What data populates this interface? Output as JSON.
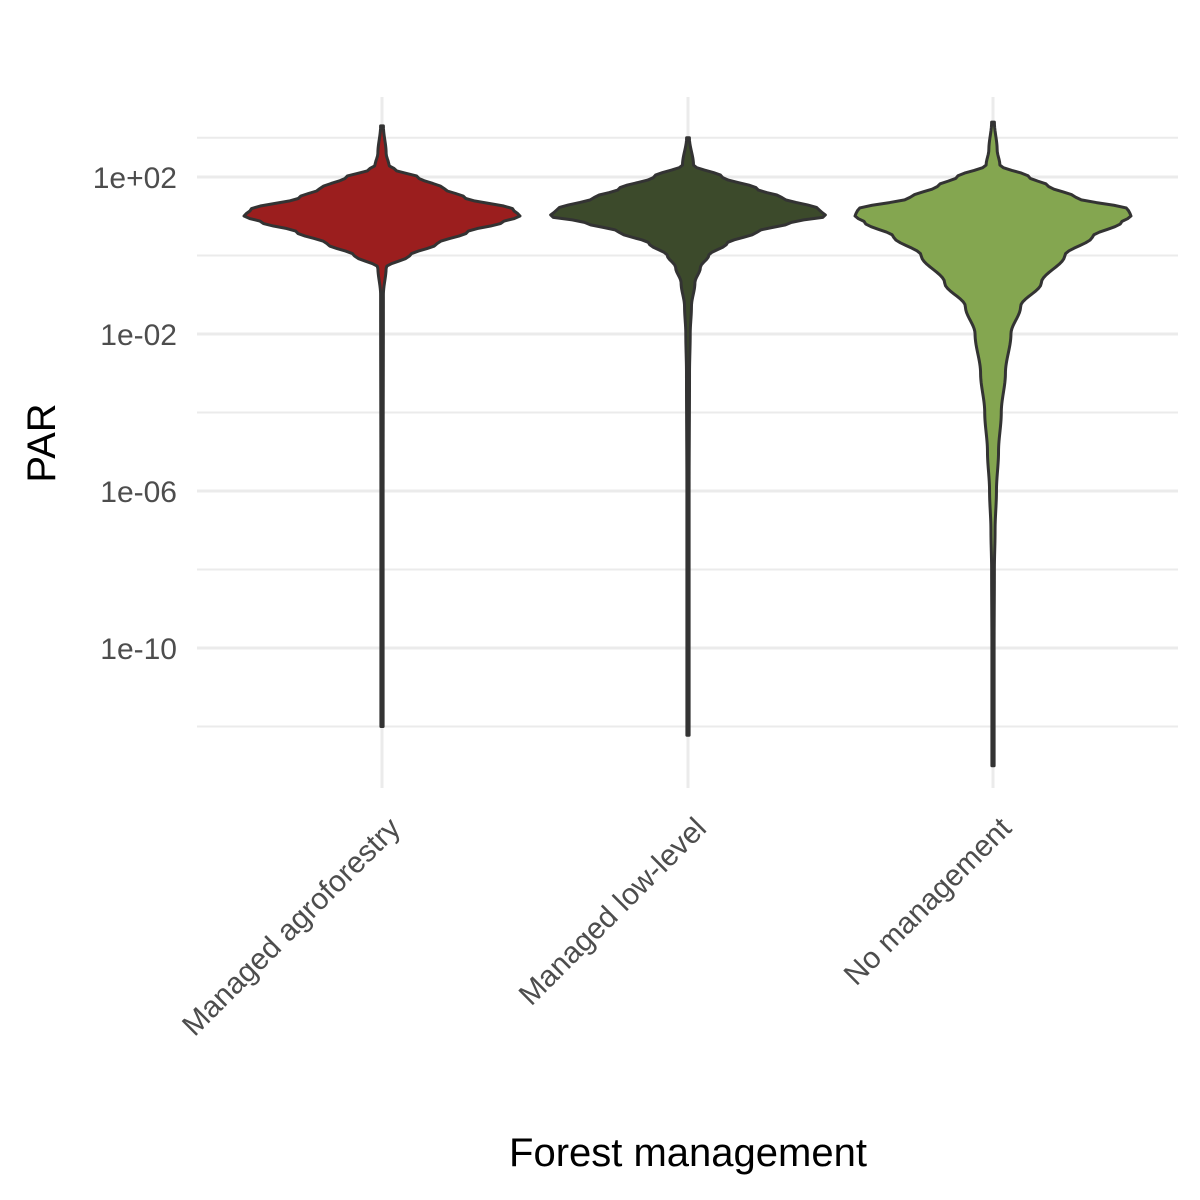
{
  "chart_data": {
    "type": "violin",
    "xlabel": "Forest management",
    "ylabel": "PAR",
    "y_scale": "log10",
    "ylim": [
      1e-14,
      10000.0
    ],
    "y_ticks": [
      {
        "value": 100,
        "label": "1e+02"
      },
      {
        "value": 0.01,
        "label": "1e-02"
      },
      {
        "value": 1e-06,
        "label": "1e-06"
      },
      {
        "value": 1e-10,
        "label": "1e-10"
      }
    ],
    "y_minor_ticks": [
      1000,
      1,
      0.0001,
      1e-08,
      1e-12
    ],
    "grid": true,
    "legend": "none",
    "categories": [
      "Managed agroforestry",
      "Managed low-level",
      "No management"
    ],
    "series": [
      {
        "category": "Managed agroforestry",
        "color": "#9b1e1e",
        "min": 1e-12,
        "max": 2000,
        "mode": 10,
        "density_profile": [
          [
            1e-12,
            0.008
          ],
          [
            1e-06,
            0.008
          ],
          [
            0.1,
            0.01
          ],
          [
            0.5,
            0.03
          ],
          [
            1,
            0.2
          ],
          [
            2,
            0.4
          ],
          [
            4,
            0.62
          ],
          [
            7,
            0.87
          ],
          [
            10,
            1.0
          ],
          [
            15,
            0.95
          ],
          [
            30,
            0.6
          ],
          [
            50,
            0.45
          ],
          [
            100,
            0.26
          ],
          [
            150,
            0.1
          ],
          [
            200,
            0.05
          ],
          [
            400,
            0.03
          ],
          [
            2000,
            0.01
          ]
        ]
      },
      {
        "category": "Managed low-level",
        "color": "#3c4a2b",
        "min": 6e-13,
        "max": 1000,
        "mode": 10,
        "density_profile": [
          [
            6e-13,
            0.008
          ],
          [
            1e-06,
            0.008
          ],
          [
            0.001,
            0.011
          ],
          [
            0.01,
            0.016
          ],
          [
            0.05,
            0.025
          ],
          [
            0.2,
            0.05
          ],
          [
            0.5,
            0.09
          ],
          [
            1,
            0.15
          ],
          [
            2,
            0.28
          ],
          [
            4,
            0.5
          ],
          [
            7,
            0.75
          ],
          [
            10,
            1.0
          ],
          [
            15,
            0.95
          ],
          [
            30,
            0.68
          ],
          [
            50,
            0.5
          ],
          [
            100,
            0.25
          ],
          [
            200,
            0.04
          ],
          [
            1000,
            0.01
          ]
        ]
      },
      {
        "category": "No management",
        "color": "#84a650",
        "min": 1e-13,
        "max": 2500,
        "mode": 10,
        "density_profile": [
          [
            1e-13,
            0.008
          ],
          [
            1e-10,
            0.008
          ],
          [
            1e-08,
            0.01
          ],
          [
            1e-07,
            0.015
          ],
          [
            1e-06,
            0.025
          ],
          [
            1e-05,
            0.04
          ],
          [
            0.0001,
            0.06
          ],
          [
            0.001,
            0.09
          ],
          [
            0.01,
            0.13
          ],
          [
            0.05,
            0.2
          ],
          [
            0.2,
            0.35
          ],
          [
            1,
            0.52
          ],
          [
            3,
            0.72
          ],
          [
            7,
            0.93
          ],
          [
            10,
            1.0
          ],
          [
            15,
            0.98
          ],
          [
            30,
            0.6
          ],
          [
            60,
            0.4
          ],
          [
            100,
            0.26
          ],
          [
            200,
            0.05
          ],
          [
            500,
            0.03
          ],
          [
            2500,
            0.01
          ]
        ]
      }
    ]
  }
}
